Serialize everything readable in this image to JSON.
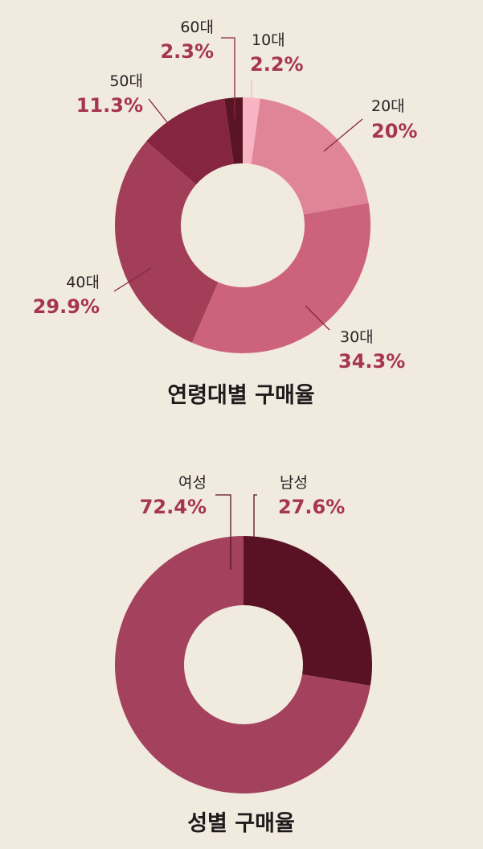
{
  "chart_data": [
    {
      "type": "pie",
      "title": "연령대별 구매율",
      "categories": [
        "10대",
        "20대",
        "30대",
        "40대",
        "50대",
        "60대"
      ],
      "values": [
        2.2,
        20,
        34.3,
        29.9,
        11.3,
        2.3
      ],
      "value_labels": [
        "2.2%",
        "20%",
        "34.3%",
        "29.9%",
        "11.3%",
        "2.3%"
      ],
      "colors": [
        "#f7b5c4",
        "#e08597",
        "#cc627c",
        "#a23e57",
        "#862540",
        "#5a1525"
      ],
      "legend": "none"
    },
    {
      "type": "pie",
      "title": "성별 구매율",
      "categories": [
        "남성",
        "여성"
      ],
      "values": [
        27.6,
        72.4
      ],
      "value_labels": [
        "27.6%",
        "72.4%"
      ],
      "colors": [
        "#581223",
        "#a4425d"
      ],
      "legend": "none"
    }
  ],
  "colors": {
    "background": "#f1eadf",
    "value_text": "#a63552",
    "label_text": "#2a2224",
    "title_text": "#1f1a1b"
  }
}
